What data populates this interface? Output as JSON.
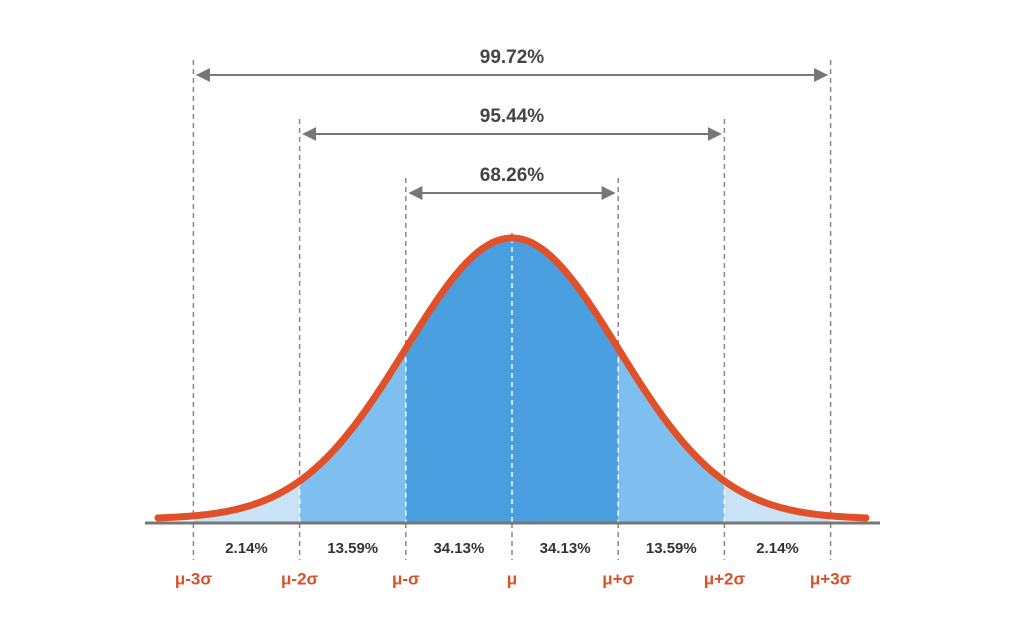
{
  "brackets": [
    "99.72%",
    "95.44%",
    "68.26%"
  ],
  "regions": [
    "2.14%",
    "13.59%",
    "34.13%",
    "34.13%",
    "13.59%",
    "2.14%"
  ],
  "markers": [
    "μ-3σ",
    "μ-2σ",
    "μ-σ",
    "μ",
    "μ+σ",
    "μ+2σ",
    "μ+3σ"
  ]
}
